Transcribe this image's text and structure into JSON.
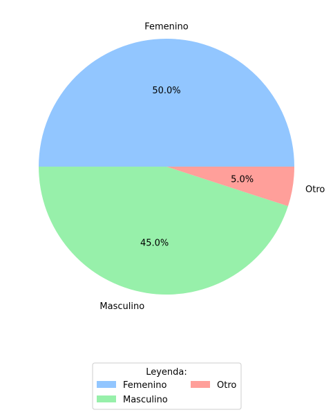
{
  "chart_data": {
    "type": "pie",
    "slices": [
      {
        "label": "Femenino",
        "value": 50.0,
        "pct_label": "50.0%",
        "color": "#92c6ff"
      },
      {
        "label": "Masculino",
        "value": 45.0,
        "pct_label": "45.0%",
        "color": "#97f0aa"
      },
      {
        "label": "Otro",
        "value": 5.0,
        "pct_label": "5.0%",
        "color": "#ff9f9a"
      }
    ],
    "start_angle_deg": 0,
    "direction": "counterclockwise",
    "legend": {
      "title": "Leyenda:",
      "placement": "bottom-center",
      "columns": 2,
      "entries": [
        "Femenino",
        "Masculino",
        "Otro"
      ]
    }
  }
}
